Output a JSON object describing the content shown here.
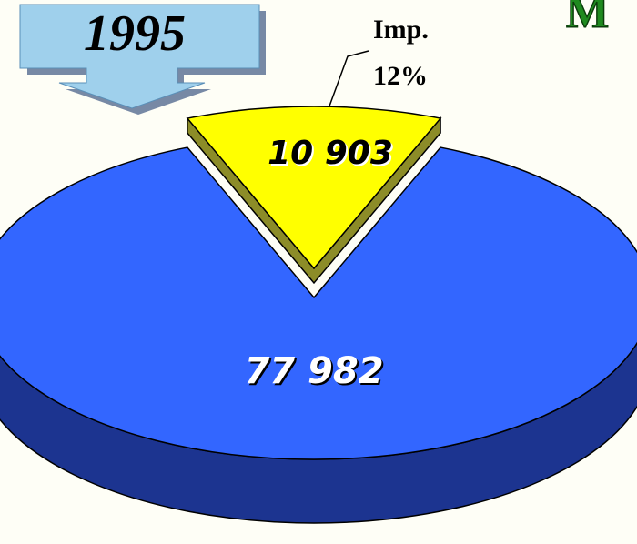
{
  "chart_data": {
    "type": "pie",
    "title": "1995",
    "annotation": "M",
    "categories": [
      "Imp.",
      null
    ],
    "values": [
      10903,
      77982
    ],
    "value_labels": [
      "10 903",
      "77 982"
    ],
    "percent_labels": [
      "12%",
      null
    ],
    "colors": [
      "#ffff00",
      "#3366ff"
    ],
    "side_colors": [
      "#8c8c28",
      "#1c3490"
    ],
    "explode": [
      true,
      false
    ]
  }
}
